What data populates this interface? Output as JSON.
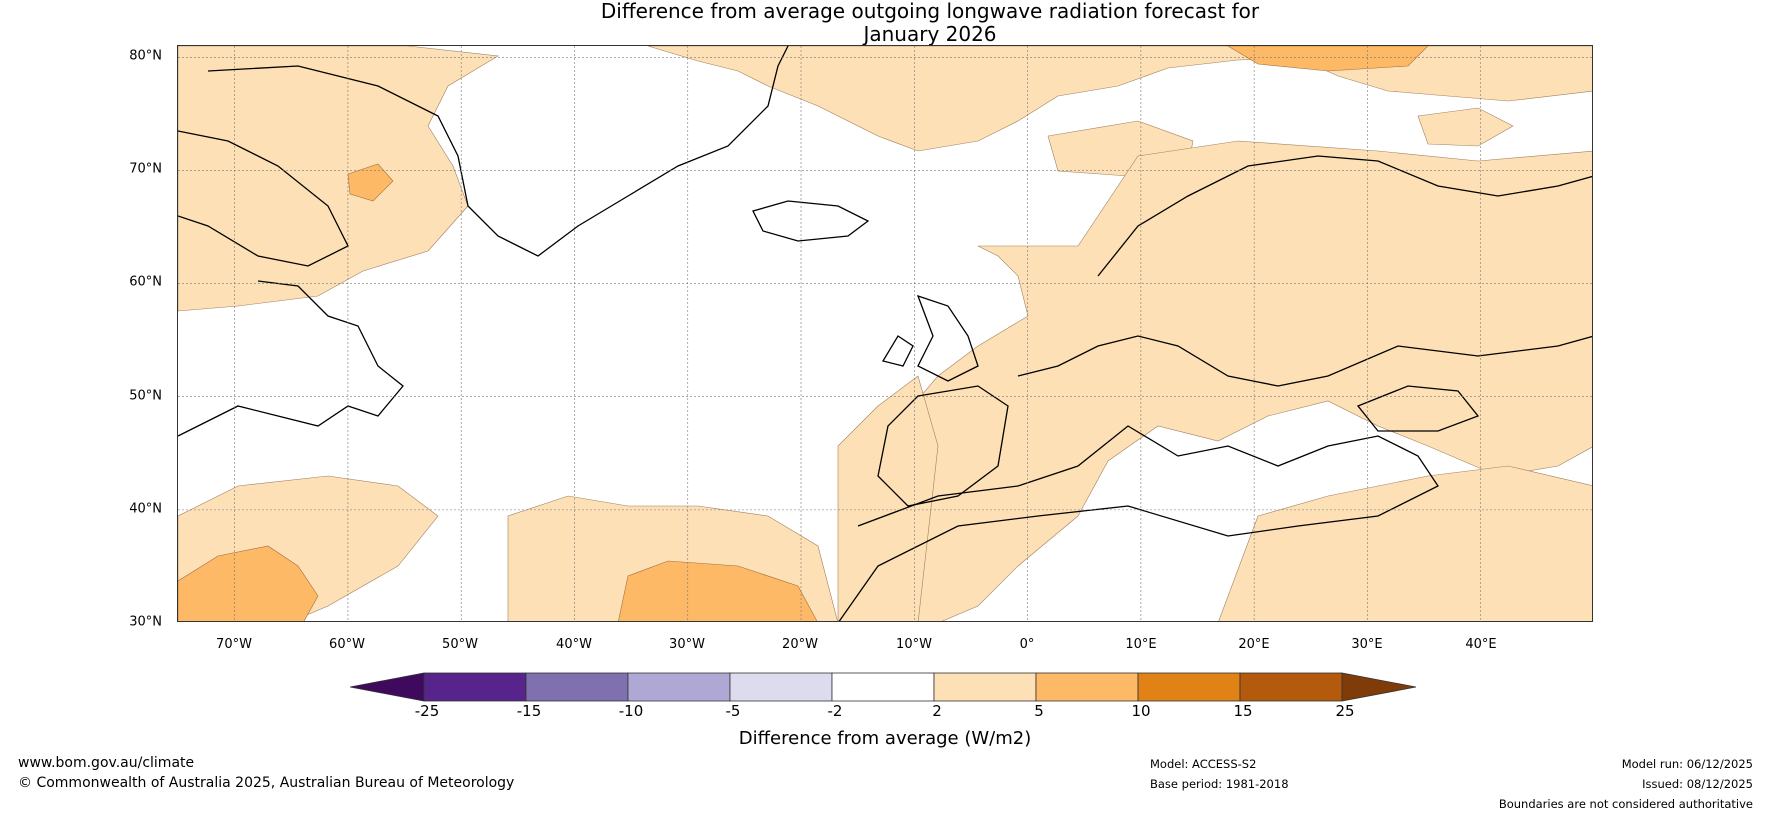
{
  "title": {
    "line1": "Difference from average outgoing longwave radiation forecast for",
    "line2": "January 2026"
  },
  "map": {
    "extent": {
      "lon_min": -75,
      "lon_max": 50,
      "lat_min": 30,
      "lat_max": 81
    },
    "lat_labels": [
      "80°N",
      "70°N",
      "60°N",
      "50°N",
      "40°N",
      "30°N"
    ],
    "lat_values": [
      80,
      70,
      60,
      50,
      40,
      30
    ],
    "lon_labels": [
      "70°W",
      "60°W",
      "50°W",
      "40°W",
      "30°W",
      "20°W",
      "10°W",
      "0°",
      "10°E",
      "20°E",
      "30°E",
      "40°E"
    ],
    "lon_values": [
      -70,
      -60,
      -50,
      -40,
      -30,
      -20,
      -10,
      0,
      10,
      20,
      30,
      40
    ]
  },
  "legend": {
    "title": "Difference from average (W/m2)",
    "ticks": [
      "-25",
      "-15",
      "-10",
      "-5",
      "-2",
      "2",
      "5",
      "10",
      "15",
      "25"
    ],
    "colors": [
      "#3f0a5e",
      "#56248a",
      "#7f70af",
      "#b0a8d4",
      "#dcdcee",
      "#ffffff",
      "#fde0b5",
      "#fdb966",
      "#e08216",
      "#b35a0c",
      "#7f3b08"
    ]
  },
  "footer": {
    "website": "www.bom.gov.au/climate",
    "copyright": "© Commonwealth of Australia 2025, Australian Bureau of Meteorology",
    "model": "Model: ACCESS-S2",
    "base_period": "Base period: 1981-2018",
    "model_run": "Model run: 06/12/2025",
    "issued": "Issued: 08/12/2025",
    "disclaimer": "Boundaries are not considered authoritative"
  }
}
